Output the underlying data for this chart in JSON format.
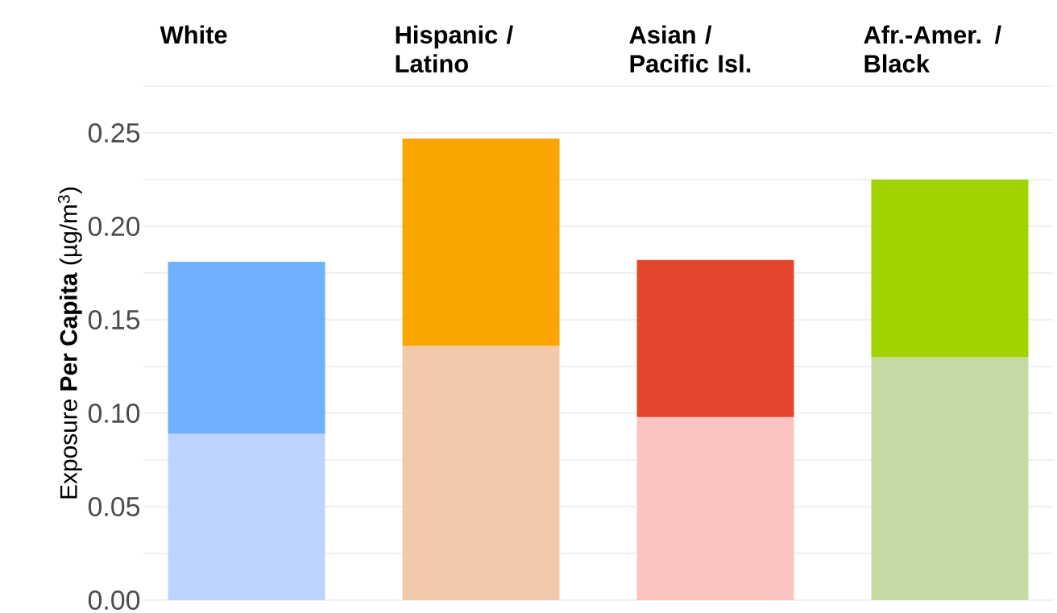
{
  "chart_data": {
    "type": "bar",
    "stacked": true,
    "categories": [
      "White",
      "Hispanic / Latino",
      "Asian / Pacific Isl.",
      "Afr.-Amer. / Black"
    ],
    "ylabel": "Exposure **Per Capita** (µg/m$^{3}$)",
    "ylim": [
      0,
      0.275
    ],
    "yticks": [
      {
        "value": 0,
        "label": "0.00"
      },
      {
        "value": 0.025,
        "label": null
      },
      {
        "value": 0.05,
        "label": "0.05"
      },
      {
        "value": 0.075,
        "label": null
      },
      {
        "value": 0.1,
        "label": "0.10"
      },
      {
        "value": 0.125,
        "label": null
      },
      {
        "value": 0.15,
        "label": "0.15"
      },
      {
        "value": 0.175,
        "label": null
      },
      {
        "value": 0.2,
        "label": "0.20"
      },
      {
        "value": 0.225,
        "label": null
      },
      {
        "value": 0.25,
        "label": "0.25"
      },
      {
        "value": 0.275,
        "label": null
      }
    ],
    "grid": "y",
    "series": [
      {
        "colors": [
          "#bcd4ff",
          "#f2caab",
          "#fbc2c2",
          "#c6daa4"
        ],
        "values": [
          0.089,
          0.136,
          0.098,
          0.13
        ]
      },
      {
        "colors": [
          "#6eaffe",
          "#fba600",
          "#e3452d",
          "#a0d300"
        ],
        "values": [
          0.092,
          0.111,
          0.084,
          0.095
        ]
      }
    ]
  }
}
